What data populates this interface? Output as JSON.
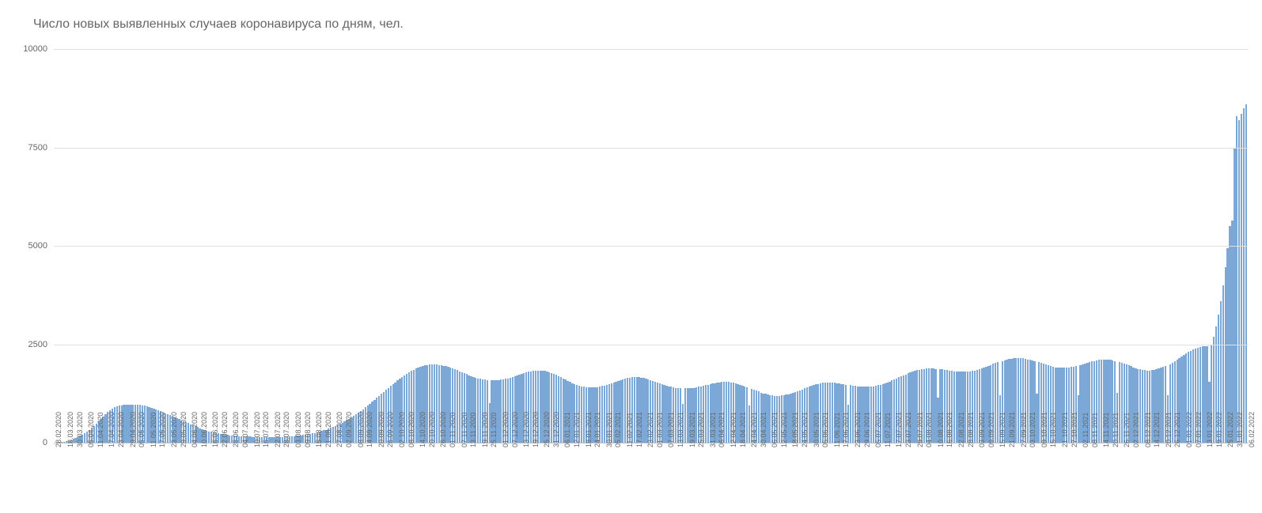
{
  "chart": {
    "type": "bar",
    "title": "Число новых выявленных случаев коронавируса по дням, чел.",
    "title_fontsize": 16,
    "title_color": "#666666",
    "background_color": "#ffffff",
    "grid_color": "#e0e0e0",
    "baseline_color": "#bdbdbd",
    "axis_font_color": "#666666",
    "axis_fontsize_y": 11,
    "axis_fontsize_x": 9,
    "bar_color": "#7ca8d8",
    "ylim": [
      0,
      10000
    ],
    "yticks": [
      0,
      2500,
      5000,
      7500,
      10000
    ],
    "xlabels": [
      "28.02.2020",
      "",
      "",
      "",
      "",
      "",
      "",
      "",
      "",
      "",
      "",
      "",
      "",
      "",
      "",
      "",
      "",
      "",
      "",
      "",
      "",
      "",
      "",
      "",
      "",
      "",
      "",
      "",
      "",
      "",
      "",
      "",
      "",
      "",
      "",
      "",
      "",
      "",
      "",
      "",
      "",
      "",
      "",
      "",
      "",
      "",
      "",
      "",
      "",
      "",
      "",
      "",
      "",
      "",
      "",
      "",
      "",
      "",
      "",
      "",
      "",
      "",
      "",
      "",
      "",
      "",
      "",
      "",
      "",
      "",
      "",
      "",
      "",
      "",
      "",
      "",
      "",
      "",
      "",
      "",
      "",
      "",
      "",
      "",
      "",
      "",
      "",
      "",
      "",
      "",
      "",
      "",
      "",
      "",
      "",
      "",
      "",
      "",
      "",
      "",
      "",
      "",
      "",
      "",
      "",
      "",
      "",
      "",
      "",
      "",
      "",
      "",
      "",
      "",
      "",
      "",
      "",
      "",
      "",
      "",
      "",
      "",
      "",
      "",
      "",
      "",
      "",
      "",
      "",
      "",
      "",
      "",
      "",
      "",
      "",
      "",
      "",
      "",
      "",
      "",
      "",
      "",
      "",
      "",
      "",
      "",
      "",
      "",
      "",
      "",
      "",
      "",
      "",
      "",
      "",
      "",
      "",
      "",
      "",
      "",
      "",
      "",
      "",
      "",
      "",
      "",
      "",
      "",
      "",
      "",
      "",
      "",
      "",
      "",
      "",
      "",
      "",
      "",
      "",
      "",
      "",
      "",
      "",
      "",
      "",
      "",
      "",
      "",
      "",
      "",
      "",
      "",
      "",
      "",
      "",
      "",
      "",
      "",
      "",
      "",
      "",
      "",
      "",
      "",
      "",
      "",
      "",
      "",
      "",
      "",
      "",
      "",
      "",
      "",
      "",
      "",
      "",
      "",
      "",
      "",
      "",
      "",
      "",
      "",
      "",
      "",
      "",
      "",
      "",
      "",
      "",
      "",
      "",
      "",
      "",
      "",
      "",
      "",
      "",
      "",
      "",
      "",
      "",
      "",
      "",
      "",
      "",
      "",
      "",
      "",
      "",
      "",
      "",
      "",
      "",
      "",
      "",
      "",
      "",
      "",
      "",
      "",
      "",
      "",
      "",
      "",
      "",
      "",
      "",
      "",
      "",
      "",
      "",
      "",
      "",
      "",
      "",
      "",
      "",
      "",
      "",
      "",
      "",
      "",
      "",
      "",
      "",
      "",
      "",
      "",
      "",
      "",
      "",
      "",
      "",
      "",
      "",
      "",
      "",
      "",
      "",
      "",
      "",
      "",
      "",
      "",
      "",
      "",
      "",
      "",
      "",
      "",
      "",
      "",
      "",
      "",
      "",
      "",
      "",
      "",
      "",
      "",
      "",
      "",
      "",
      "",
      "",
      "",
      "",
      "",
      "",
      "",
      "",
      "",
      "",
      "",
      "",
      "",
      "",
      "",
      "",
      "",
      "",
      "",
      "",
      "",
      "",
      "",
      "",
      "",
      "",
      "",
      "",
      "",
      "",
      "",
      "",
      "",
      "",
      "",
      "",
      "",
      "",
      "",
      "",
      ""
    ],
    "xticks_every": 6,
    "xticks": [
      "28.02.2020",
      "18.03.2020",
      "30.03.2020",
      "05.04.2020",
      "11.04.2020",
      "17.04.2020",
      "23.04.2020",
      "29.04.2020",
      "05.05.2020",
      "11.05.2020",
      "17.05.2020",
      "23.05.2020",
      "29.05.2020",
      "04.06.2020",
      "10.06.2020",
      "16.06.2020",
      "22.06.2020",
      "28.06.2020",
      "04.07.2020",
      "10.07.2020",
      "16.07.2020",
      "22.07.2020",
      "28.07.2020",
      "03.08.2020",
      "09.08.2020",
      "15.08.2020",
      "21.08.2020",
      "27.08.2020",
      "02.09.2020",
      "08.09.2020",
      "14.09.2020",
      "20.09.2020",
      "26.09.2020",
      "02.10.2020",
      "08.10.2020",
      "14.10.2020",
      "20.10.2020",
      "26.10.2020",
      "01.11.2020",
      "07.11.2020",
      "13.11.2020",
      "19.11.2020",
      "25.11.2020",
      "01.12.2020",
      "07.12.2020",
      "13.12.2020",
      "19.12.2020",
      "25.12.2020",
      "31.12.2020",
      "06.01.2021",
      "12.01.2021",
      "18.01.2021",
      "24.01.2021",
      "30.01.2021",
      "05.02.2021",
      "11.02.2021",
      "17.02.2021",
      "23.02.2021",
      "01.03.2021",
      "07.03.2021",
      "13.03.2021",
      "19.03.2021",
      "25.03.2021",
      "31.03.2021",
      "06.04.2021",
      "12.04.2021",
      "18.04.2021",
      "24.04.2021",
      "30.04.2021",
      "06.05.2021",
      "12.05.2021",
      "18.05.2021",
      "24.05.2021",
      "30.05.2021",
      "05.06.2021",
      "11.06.2021",
      "17.06.2021",
      "23.06.2021",
      "29.06.2021",
      "05.07.2021",
      "11.07.2021",
      "17.07.2021",
      "23.07.2021",
      "29.07.2021",
      "04.08.2021",
      "10.08.2021",
      "16.08.2021",
      "22.08.2021",
      "28.08.2021",
      "03.09.2021",
      "09.09.2021",
      "15.09.2021",
      "21.09.2021",
      "27.09.2021",
      "03.10.2021",
      "09.10.2021",
      "15.10.2021",
      "21.10.2021",
      "27.10.2021",
      "02.11.2021",
      "08.11.2021",
      "14.11.2021",
      "20.11.2021",
      "26.11.2021",
      "02.12.2021",
      "08.12.2021",
      "14.12.2021",
      "20.12.2021",
      "26.12.2021",
      "01.01.2022",
      "07.01.2022",
      "13.01.2022",
      "19.01.2022",
      "25.01.2022",
      "31.01.2022",
      "06.02.2022"
    ],
    "values": [
      5,
      8,
      12,
      18,
      25,
      35,
      50,
      70,
      95,
      120,
      150,
      180,
      210,
      250,
      290,
      330,
      380,
      430,
      480,
      540,
      600,
      660,
      720,
      780,
      830,
      870,
      900,
      920,
      935,
      945,
      955,
      960,
      965,
      968,
      970,
      968,
      965,
      960,
      950,
      940,
      925,
      910,
      890,
      870,
      845,
      820,
      795,
      770,
      745,
      720,
      695,
      670,
      645,
      620,
      595,
      570,
      545,
      520,
      495,
      470,
      445,
      420,
      395,
      370,
      345,
      325,
      305,
      290,
      275,
      260,
      248,
      236,
      225,
      215,
      206,
      198,
      191,
      185,
      179,
      174,
      169,
      165,
      161,
      158,
      155,
      152,
      150,
      148,
      146,
      144,
      143,
      142,
      141,
      141,
      141,
      142,
      143,
      144,
      146,
      148,
      151,
      154,
      158,
      162,
      167,
      172,
      178,
      185,
      193,
      202,
      212,
      223,
      235,
      248,
      262,
      277,
      294,
      312,
      331,
      352,
      374,
      398,
      423,
      450,
      479,
      509,
      541,
      575,
      610,
      647,
      685,
      725,
      766,
      808,
      852,
      897,
      943,
      990,
      1038,
      1087,
      1136,
      1186,
      1236,
      1287,
      1337,
      1387,
      1437,
      1486,
      1534,
      1581,
      1626,
      1670,
      1712,
      1752,
      1789,
      1824,
      1856,
      1884,
      1910,
      1932,
      1950,
      1965,
      1976,
      1983,
      1987,
      1987,
      1984,
      1978,
      1968,
      1956,
      1941,
      1924,
      1905,
      1884,
      1862,
      1838,
      1814,
      1789,
      1764,
      1740,
      1716,
      1693,
      1672,
      1652,
      1635,
      1620,
      1607,
      1597,
      1590,
      1010,
      1585,
      1584,
      1586,
      1591,
      1599,
      1609,
      1622,
      1636,
      1653,
      1671,
      1690,
      1710,
      1730,
      1750,
      1769,
      1786,
      1802,
      1815,
      1825,
      1832,
      1835,
      1834,
      1829,
      1820,
      1807,
      1790,
      1770,
      1747,
      1721,
      1693,
      1664,
      1634,
      1603,
      1573,
      1543,
      1515,
      1489,
      1466,
      1446,
      1429,
      1416,
      1406,
      1400,
      1398,
      1399,
      1404,
      1412,
      1423,
      1437,
      1453,
      1471,
      1490,
      1511,
      1532,
      1553,
      1574,
      1594,
      1612,
      1628,
      1642,
      1652,
      1659,
      1662,
      1662,
      1658,
      1651,
      1640,
      1626,
      1610,
      1592,
      1572,
      1551,
      1530,
      1508,
      1487,
      1467,
      1448,
      1431,
      1416,
      1403,
      1393,
      1385,
      1380,
      980,
      1378,
      1378,
      1381,
      1387,
      1395,
      1405,
      1416,
      1429,
      1443,
      1458,
      1473,
      1488,
      1502,
      1515,
      1526,
      1535,
      1541,
      1544,
      1543,
      1539,
      1532,
      1521,
      1507,
      1490,
      1470,
      1448,
      1424,
      1399,
      950,
      1373,
      1347,
      1322,
      1298,
      1275,
      1254,
      1236,
      1220,
      1208,
      1199,
      1193,
      1191,
      1192,
      1197,
      1205,
      1216,
      1230,
      1246,
      1265,
      1285,
      1307,
      1330,
      1353,
      1377,
      1400,
      1423,
      1444,
      1464,
      1481,
      1496,
      1508,
      1517,
      1523,
      1526,
      1526,
      1523,
      1518,
      1511,
      1502,
      1492,
      1481,
      1470,
      960,
      1459,
      1449,
      1440,
      1432,
      1426,
      1422,
      1420,
      1420,
      1423,
      1428,
      1436,
      1446,
      1459,
      1474,
      1491,
      1510,
      1531,
      1554,
      1578,
      1604,
      1630,
      1657,
      1684,
      1711,
      1737,
      1762,
      1785,
      1807,
      1826,
      1843,
      1857,
      1868,
      1876,
      1881,
      1883,
      1882,
      1879,
      1874,
      1140,
      1867,
      1859,
      1850,
      1841,
      1832,
      1823,
      1815,
      1808,
      1803,
      1800,
      1799,
      1801,
      1805,
      1812,
      1822,
      1834,
      1849,
      1866,
      1885,
      1906,
      1928,
      1951,
      1975,
      1999,
      2023,
      2046,
      1200,
      2068,
      2088,
      2106,
      2121,
      2133,
      2142,
      2147,
      2148,
      2145,
      2139,
      2129,
      2116,
      2100,
      2082,
      2062,
      1250,
      2041,
      2020,
      1999,
      1979,
      1960,
      1943,
      1928,
      1916,
      1907,
      1901,
      1898,
      1899,
      1903,
      1910,
      1920,
      1933,
      1948,
      1200,
      1965,
      1983,
      2002,
      2022,
      2041,
      2059,
      2075,
      2089,
      2100,
      2108,
      2112,
      2112,
      2108,
      2100,
      2088,
      2073,
      1260,
      2055,
      2034,
      2012,
      1988,
      1964,
      1940,
      1917,
      1896,
      1877,
      1861,
      1849,
      1840,
      1836,
      1836,
      1840,
      1849,
      1862,
      1880,
      1901,
      1927,
      1956,
      1200,
      1989,
      2024,
      2062,
      2102,
      2143,
      2184,
      2225,
      2265,
      2303,
      2338,
      2369,
      2396,
      2418,
      2434,
      2444,
      2447,
      2444,
      1550,
      2500,
      2700,
      2950,
      3250,
      3600,
      4000,
      4450,
      4950,
      5500,
      5650,
      7500,
      8300,
      8200,
      8350,
      8500,
      8600
    ]
  }
}
